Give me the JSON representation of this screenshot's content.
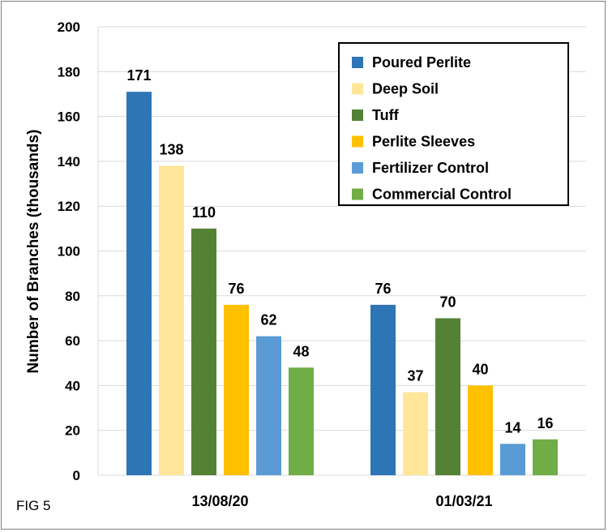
{
  "figure_label": "FIG 5",
  "colors": {
    "Poured Perlite": "#2e75b6",
    "Deep Soil": "#ffe699",
    "Tuff": "#548235",
    "Perlite Sleeves": "#ffc000",
    "Fertilizer Control": "#5b9bd5",
    "Commercial Control": "#70ad47"
  },
  "chart_data": {
    "type": "bar",
    "title": "",
    "xlabel": "",
    "ylabel": "Number of Branches (thousands)",
    "ylim": [
      0,
      200
    ],
    "yticks": [
      0,
      20,
      40,
      60,
      80,
      100,
      120,
      140,
      160,
      180,
      200
    ],
    "grid": true,
    "legend_position": "top-right",
    "categories": [
      "13/08/20",
      "01/03/21"
    ],
    "series": [
      {
        "name": "Poured Perlite",
        "values": [
          171,
          76
        ]
      },
      {
        "name": "Deep Soil",
        "values": [
          138,
          37
        ]
      },
      {
        "name": "Tuff",
        "values": [
          110,
          70
        ]
      },
      {
        "name": "Perlite Sleeves",
        "values": [
          76,
          40
        ]
      },
      {
        "name": "Fertilizer Control",
        "values": [
          62,
          14
        ]
      },
      {
        "name": "Commercial Control",
        "values": [
          48,
          16
        ]
      }
    ]
  }
}
